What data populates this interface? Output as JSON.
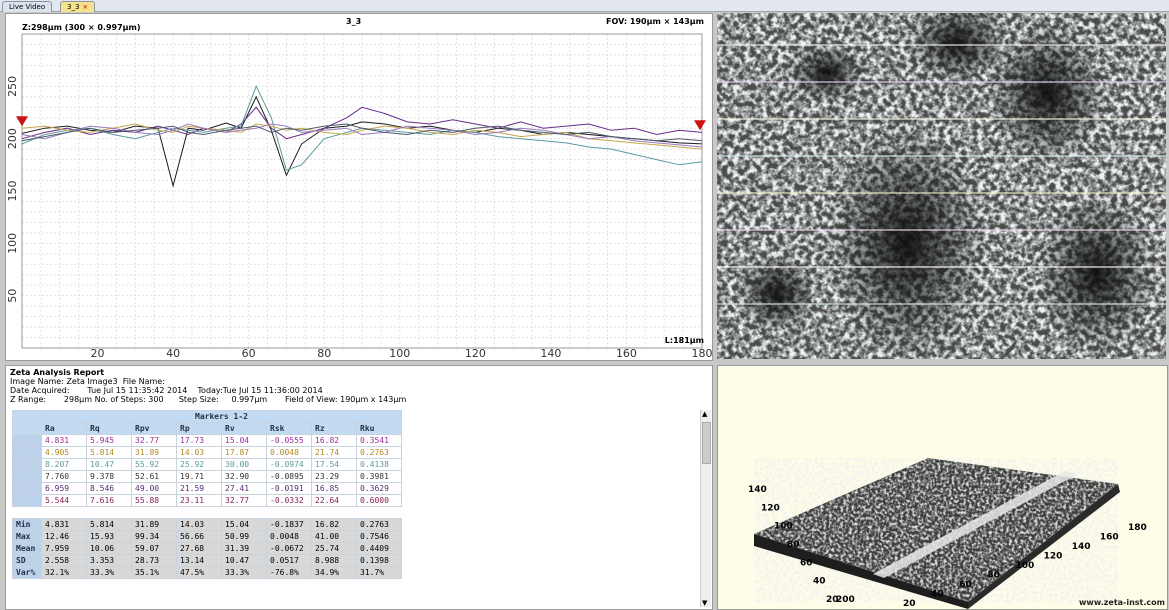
{
  "tabs": [
    {
      "label": "Live Video"
    },
    {
      "label": "3_3",
      "close": "×"
    }
  ],
  "profile": {
    "z_label": "Z:298µm (300 × 0.997µm)",
    "title": "3_3",
    "fov": "FOV: 190µm × 143µm",
    "length": "L:181µm",
    "x_ticks": [
      "20",
      "40",
      "60",
      "80",
      "100",
      "120",
      "140",
      "160",
      "180"
    ],
    "y_ticks": [
      "50",
      "100",
      "150",
      "200",
      "250"
    ],
    "marker_color": "#cc1111"
  },
  "chart_data": {
    "type": "line",
    "title": "3_3",
    "xlabel": "",
    "ylabel": "",
    "xlim": [
      0,
      180
    ],
    "ylim": [
      0,
      300
    ],
    "grid": true,
    "x": [
      0,
      6,
      12,
      18,
      24,
      30,
      36,
      40,
      44,
      48,
      54,
      58,
      62,
      66,
      70,
      74,
      80,
      86,
      90,
      96,
      102,
      108,
      114,
      120,
      126,
      132,
      138,
      144,
      150,
      156,
      162,
      168,
      174,
      180
    ],
    "series": [
      {
        "color": "#1a1a1a",
        "values": [
          205,
          210,
          212,
          208,
          206,
          212,
          210,
          155,
          210,
          208,
          215,
          210,
          240,
          208,
          165,
          195,
          210,
          212,
          216,
          214,
          210,
          212,
          208,
          206,
          210,
          208,
          204,
          206,
          204,
          202,
          200,
          198,
          196,
          195
        ]
      },
      {
        "color": "#6a2a8a",
        "values": [
          200,
          206,
          210,
          204,
          208,
          206,
          212,
          208,
          204,
          210,
          206,
          214,
          230,
          210,
          200,
          204,
          210,
          220,
          230,
          224,
          216,
          214,
          218,
          214,
          210,
          216,
          210,
          212,
          214,
          208,
          210,
          204,
          208,
          206
        ]
      },
      {
        "color": "#5c9aa0",
        "values": [
          195,
          204,
          208,
          210,
          204,
          200,
          206,
          210,
          208,
          206,
          210,
          212,
          250,
          220,
          170,
          175,
          200,
          206,
          210,
          208,
          206,
          204,
          208,
          206,
          202,
          200,
          198,
          196,
          192,
          190,
          185,
          180,
          175,
          178
        ]
      },
      {
        "color": "#c8a84a",
        "values": [
          210,
          212,
          208,
          206,
          210,
          214,
          208,
          206,
          212,
          210,
          208,
          206,
          214,
          212,
          208,
          210,
          206,
          204,
          208,
          212,
          210,
          206,
          204,
          208,
          206,
          202,
          204,
          206,
          200,
          198,
          196,
          194,
          192,
          190
        ]
      },
      {
        "color": "#9a7abf",
        "values": [
          204,
          200,
          206,
          212,
          210,
          206,
          204,
          208,
          214,
          210,
          206,
          208,
          210,
          214,
          212,
          206,
          208,
          210,
          204,
          206,
          212,
          210,
          208,
          204,
          206,
          210,
          208,
          204,
          200,
          202,
          198,
          196,
          194,
          192
        ]
      },
      {
        "color": "#4a5a6a",
        "values": [
          198,
          202,
          206,
          210,
          206,
          208,
          210,
          212,
          206,
          204,
          208,
          210,
          212,
          206,
          210,
          208,
          212,
          214,
          210,
          206,
          204,
          208,
          206,
          210,
          212,
          208,
          206,
          204,
          206,
          202,
          200,
          198,
          200,
          198
        ]
      }
    ]
  },
  "report": {
    "title": "Zeta Analysis Report",
    "image_name_label": "Image Name:",
    "image_name": "Zeta Image3",
    "file_name_label": "File Name:",
    "date_label": "Date Acquired:",
    "date": "Tue Jul 15 11:35:42 2014",
    "today_label": "Today:",
    "today": "Tue Jul 15 11:36:00 2014",
    "zrange_label": "Z Range:",
    "zrange": "298µm",
    "steps_label": "No. of Steps:",
    "steps": "300",
    "stepsize_label": "Step Size:",
    "stepsize": "0.997µm",
    "fov_label": "Field of View:",
    "fov": "190µm x 143µm",
    "table_caption": "Markers 1-2",
    "columns": [
      "Ra",
      "Rq",
      "Rpv",
      "Rp",
      "Rv",
      "Rsk",
      "Rz",
      "Rku"
    ],
    "rows": [
      {
        "color": "#9c2f9a",
        "cells": [
          "4.831",
          "5.945",
          "32.77",
          "17.73",
          "15.04",
          "-0.0555",
          "16.82",
          "0.3541"
        ]
      },
      {
        "color": "#b08a22",
        "cells": [
          "4.905",
          "5.814",
          "31.89",
          "14.03",
          "17.87",
          "0.0048",
          "21.74",
          "0.2763"
        ]
      },
      {
        "color": "#5f9a9a",
        "cells": [
          "8.207",
          "10.47",
          "55.92",
          "25.92",
          "30.00",
          "-0.0974",
          "17.54",
          "0.4138"
        ]
      },
      {
        "color": "#333333",
        "cells": [
          "7.760",
          "9.378",
          "52.61",
          "19.71",
          "32.90",
          "-0.0895",
          "23.29",
          "0.3981"
        ]
      },
      {
        "color": "#5a2a70",
        "cells": [
          "6.959",
          "8.546",
          "49.00",
          "21.59",
          "27.41",
          "-0.0191",
          "16.85",
          "0.3629"
        ]
      },
      {
        "color": "#8a1f5a",
        "cells": [
          "5.544",
          "7.616",
          "55.88",
          "23.11",
          "32.77",
          "-0.0332",
          "22.64",
          "0.6000"
        ]
      }
    ],
    "stats": [
      {
        "label": "Min",
        "cells": [
          "4.831",
          "5.814",
          "31.89",
          "14.03",
          "15.04",
          "-0.1837",
          "16.82",
          "0.2763"
        ]
      },
      {
        "label": "Max",
        "cells": [
          "12.46",
          "15.93",
          "99.34",
          "56.66",
          "50.99",
          "0.0048",
          "41.00",
          "0.7546"
        ]
      },
      {
        "label": "Mean",
        "cells": [
          "7.959",
          "10.06",
          "59.07",
          "27.68",
          "31.39",
          "-0.0672",
          "25.74",
          "0.4409"
        ]
      },
      {
        "label": "SD",
        "cells": [
          "2.558",
          "3.353",
          "28.73",
          "13.14",
          "10.47",
          "0.0517",
          "8.988",
          "0.1398"
        ]
      },
      {
        "label": "Var%",
        "cells": [
          "32.1%",
          "33.3%",
          "35.1%",
          "47.5%",
          "33.3%",
          "-76.8%",
          "34.9%",
          "31.7%"
        ]
      }
    ]
  },
  "view3d": {
    "y_axis": [
      "140",
      "120",
      "100",
      "80",
      "60",
      "40",
      "20"
    ],
    "x_axis": [
      "180",
      "160",
      "140",
      "120",
      "100",
      "80",
      "60",
      "40",
      "20"
    ],
    "z_axis": [
      "200"
    ],
    "website": "www.zeta-inst.com"
  }
}
